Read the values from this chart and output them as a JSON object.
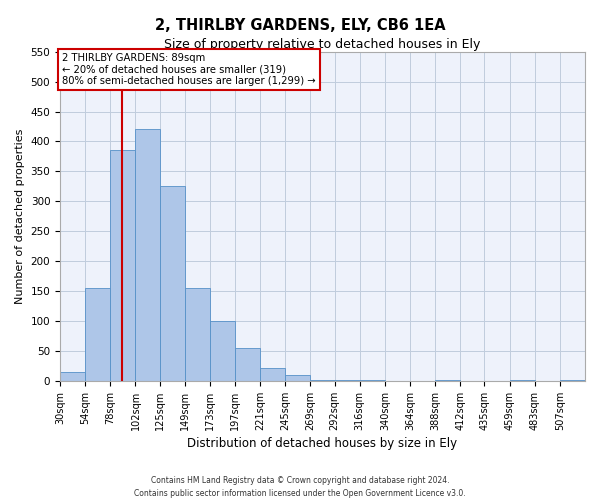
{
  "title": "2, THIRLBY GARDENS, ELY, CB6 1EA",
  "subtitle": "Size of property relative to detached houses in Ely",
  "xlabel": "Distribution of detached houses by size in Ely",
  "ylabel": "Number of detached properties",
  "bin_labels": [
    "30sqm",
    "54sqm",
    "78sqm",
    "102sqm",
    "125sqm",
    "149sqm",
    "173sqm",
    "197sqm",
    "221sqm",
    "245sqm",
    "269sqm",
    "292sqm",
    "316sqm",
    "340sqm",
    "364sqm",
    "388sqm",
    "412sqm",
    "435sqm",
    "459sqm",
    "483sqm",
    "507sqm"
  ],
  "bar_heights": [
    15,
    155,
    385,
    420,
    325,
    155,
    100,
    55,
    22,
    10,
    2,
    2,
    2,
    0,
    0,
    2,
    0,
    0,
    2,
    0,
    2
  ],
  "bar_color": "#aec6e8",
  "bar_edge_color": "#5590c8",
  "vline_x": 89,
  "vline_color": "#cc0000",
  "annotation_title": "2 THIRLBY GARDENS: 89sqm",
  "annotation_line1": "← 20% of detached houses are smaller (319)",
  "annotation_line2": "80% of semi-detached houses are larger (1,299) →",
  "annotation_box_color": "#cc0000",
  "ylim": [
    0,
    550
  ],
  "yticks": [
    0,
    50,
    100,
    150,
    200,
    250,
    300,
    350,
    400,
    450,
    500,
    550
  ],
  "bin_edges": [
    30,
    54,
    78,
    102,
    125,
    149,
    173,
    197,
    221,
    245,
    269,
    292,
    316,
    340,
    364,
    388,
    412,
    435,
    459,
    483,
    507,
    531
  ],
  "footnote1": "Contains HM Land Registry data © Crown copyright and database right 2024.",
  "footnote2": "Contains public sector information licensed under the Open Government Licence v3.0.",
  "bg_color": "#eef2fb",
  "grid_color": "#c0ccdd",
  "fig_width": 6.0,
  "fig_height": 5.0,
  "fig_dpi": 100
}
